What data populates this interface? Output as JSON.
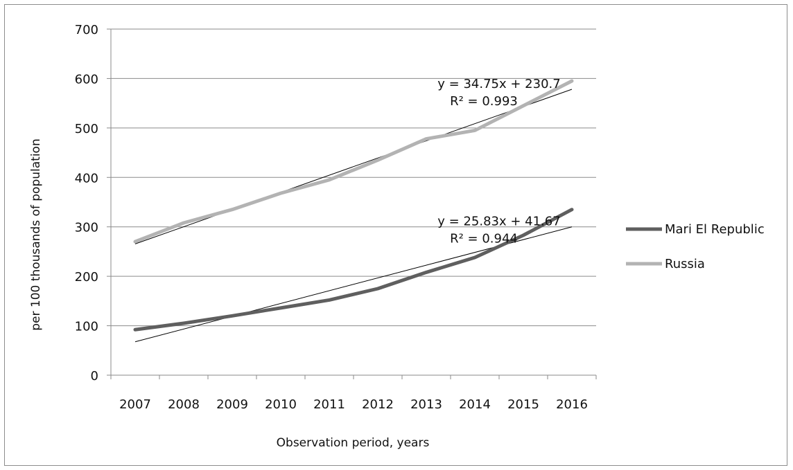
{
  "chart_data": {
    "type": "line",
    "xlabel": "Observation period, years",
    "ylabel": "per 100 thousands of population",
    "categories": [
      "2007",
      "2008",
      "2009",
      "2010",
      "2011",
      "2012",
      "2013",
      "2014",
      "2015",
      "2016"
    ],
    "ylim": [
      0,
      700
    ],
    "yticks": [
      0,
      100,
      200,
      300,
      400,
      500,
      600,
      700
    ],
    "grid": true,
    "legend_position": "right",
    "series": [
      {
        "name": "Mari El Republic",
        "color": "#5f5f5f",
        "values": [
          92,
          105,
          120,
          136,
          152,
          175,
          208,
          238,
          283,
          335
        ],
        "trendline": {
          "slope": 25.83,
          "intercept": 41.67,
          "equation": "y = 25.83x + 41.67",
          "r2": "R² = 0.944"
        }
      },
      {
        "name": "Russia",
        "color": "#b3b3b3",
        "values": [
          270,
          308,
          335,
          368,
          395,
          435,
          478,
          495,
          545,
          595
        ],
        "trendline": {
          "slope": 34.75,
          "intercept": 230.7,
          "equation": "y = 34.75x + 230.7",
          "r2": "R² = 0.993"
        }
      }
    ]
  }
}
